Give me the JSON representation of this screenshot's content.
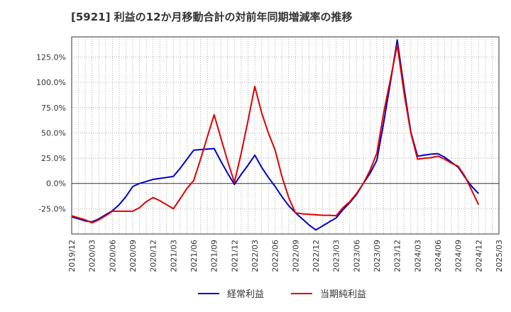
{
  "chart_data": {
    "type": "line",
    "title": "[5921]  利益の12か月移動合計の対前年同期増減率の推移",
    "xlabel": "",
    "ylabel": "",
    "ylim": [
      -50,
      145
    ],
    "yticks": [
      -25,
      0,
      25,
      50,
      75,
      100,
      125
    ],
    "ytick_labels": [
      "-25.0%",
      "0.0%",
      "25.0%",
      "50.0%",
      "75.0%",
      "100.0%",
      "125.0%"
    ],
    "categories": [
      "2019/12",
      "2020/03",
      "2020/06",
      "2020/09",
      "2020/12",
      "2021/03",
      "2021/06",
      "2021/09",
      "2021/12",
      "2022/03",
      "2022/06",
      "2022/09",
      "2022/12",
      "2023/03",
      "2023/06",
      "2023/09",
      "2023/12",
      "2024/03",
      "2024/06",
      "2024/09",
      "2024/12",
      "2025/03"
    ],
    "x": [
      "2019/12",
      "2020/01",
      "2020/02",
      "2020/03",
      "2020/04",
      "2020/05",
      "2020/06",
      "2020/07",
      "2020/08",
      "2020/09",
      "2020/10",
      "2020/11",
      "2020/12",
      "2021/01",
      "2021/02",
      "2021/03",
      "2021/04",
      "2021/05",
      "2021/06",
      "2021/07",
      "2021/08",
      "2021/09",
      "2021/10",
      "2021/11",
      "2021/12",
      "2022/01",
      "2022/02",
      "2022/03",
      "2022/04",
      "2022/05",
      "2022/06",
      "2022/07",
      "2022/08",
      "2022/09",
      "2022/10",
      "2022/11",
      "2022/12",
      "2023/01",
      "2023/02",
      "2023/03",
      "2023/04",
      "2023/05",
      "2023/06",
      "2023/07",
      "2023/08",
      "2023/09",
      "2023/10",
      "2023/11",
      "2023/12",
      "2024/01",
      "2024/02",
      "2024/03",
      "2024/04",
      "2024/05",
      "2024/06",
      "2024/07",
      "2024/08",
      "2024/09",
      "2024/10",
      "2024/11",
      "2024/12"
    ],
    "series": [
      {
        "name": "経常利益",
        "color": "#0000cc",
        "values": [
          -33,
          -35,
          -37,
          -38,
          -35,
          -31,
          -27,
          -21,
          -13,
          -3,
          0,
          2,
          4,
          5,
          6,
          7,
          15,
          24,
          33,
          33.5,
          34,
          34.5,
          22,
          10,
          -1,
          9,
          18,
          28,
          16,
          6,
          -3,
          -13,
          -22,
          -29,
          -35,
          -41,
          -46,
          -42,
          -38,
          -34,
          -26,
          -19,
          -11,
          0,
          10,
          23,
          60,
          100,
          142,
          95,
          51,
          27,
          28,
          29,
          29.5,
          26,
          21,
          16,
          6,
          -3,
          -10
        ]
      },
      {
        "name": "当期純利益",
        "color": "#dd0000",
        "values": [
          -32,
          -34,
          -36,
          -39,
          -36,
          -32,
          -27.5,
          -27.5,
          -27.5,
          -27.5,
          -24,
          -18,
          -14,
          -17,
          -21,
          -25,
          -15,
          -5,
          3,
          24,
          46,
          68,
          45,
          22,
          1,
          30,
          62,
          96,
          70,
          50,
          33,
          7,
          -14,
          -29,
          -30,
          -30.5,
          -31,
          -31.5,
          -31.5,
          -32,
          -24,
          -18,
          -10,
          0,
          13,
          30,
          70,
          103,
          137,
          90,
          50,
          24,
          25,
          25.5,
          27,
          24,
          20,
          17,
          7,
          -7,
          -21
        ]
      }
    ]
  },
  "legend": [
    {
      "label": "経常利益",
      "color": "#0000cc"
    },
    {
      "label": "当期純利益",
      "color": "#dd0000"
    }
  ]
}
